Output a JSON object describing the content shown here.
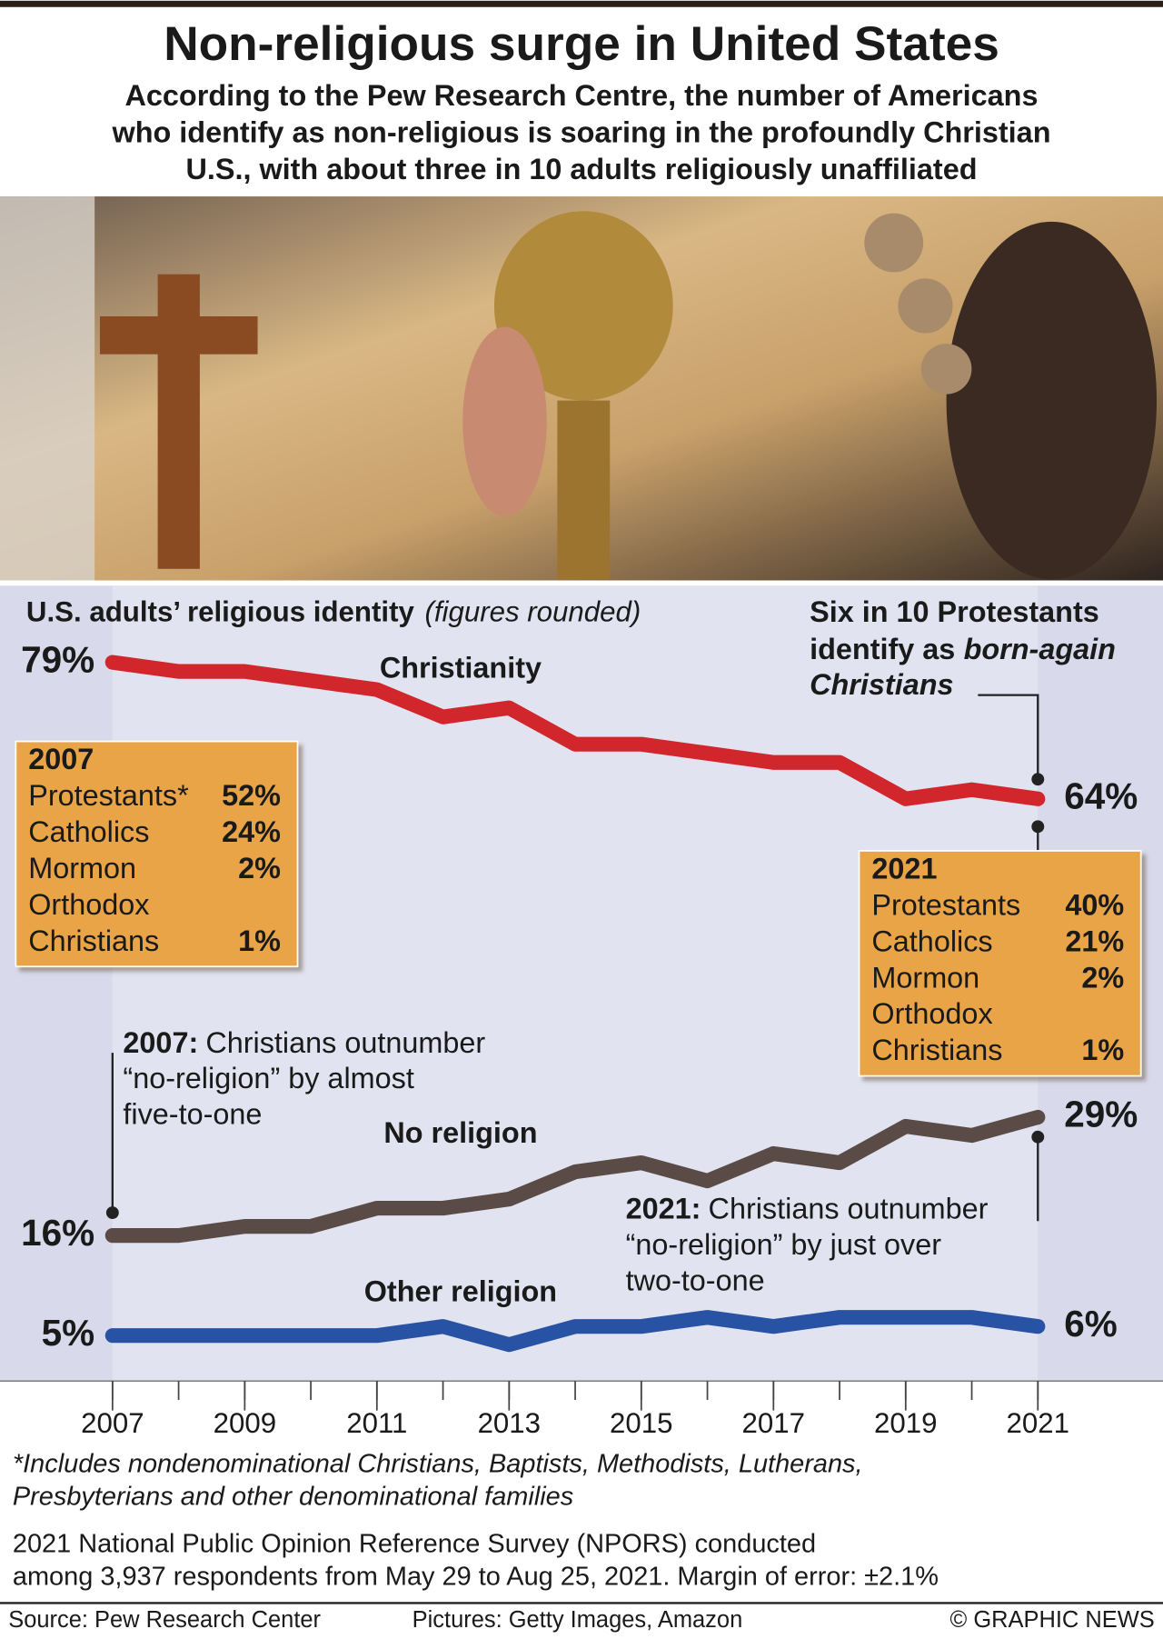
{
  "chart_data": {
    "type": "line",
    "title": "Non-religious surge in United States",
    "subtitle": [
      "According to the Pew Research Centre, the number of Americans",
      "who identify as non-religious is soaring in the profoundly Christian",
      "U.S., with about three in 10 adults religiously unaffiliated"
    ],
    "chart_title": "U.S. adults’ religious identity",
    "chart_title_note": "(figures rounded)",
    "x": [
      2007,
      2008,
      2009,
      2010,
      2011,
      2012,
      2013,
      2014,
      2015,
      2016,
      2017,
      2018,
      2019,
      2020,
      2021
    ],
    "xlim": [
      2007,
      2021
    ],
    "xticks": [
      2007,
      2009,
      2011,
      2013,
      2015,
      2017,
      2019,
      2021
    ],
    "ylim": [
      0,
      85
    ],
    "series": [
      {
        "name": "Christianity",
        "color": "#d2262d",
        "values": [
          79,
          78,
          78,
          77,
          76,
          73,
          74,
          70,
          70,
          69,
          68,
          68,
          64,
          65,
          64
        ],
        "value_labels": [
          "79%",
          null,
          null,
          null,
          null,
          null,
          null,
          null,
          null,
          null,
          null,
          null,
          null,
          null,
          "64%"
        ]
      },
      {
        "name": "No religion",
        "color": "#5b4b47",
        "values": [
          16,
          16,
          17,
          17,
          19,
          19,
          20,
          23,
          24,
          22,
          25,
          24,
          28,
          27,
          29
        ],
        "value_labels": [
          "16%",
          null,
          null,
          null,
          null,
          null,
          null,
          null,
          null,
          null,
          null,
          null,
          null,
          null,
          "29%"
        ]
      },
      {
        "name": "Other religion",
        "color": "#2852a4",
        "values": [
          5,
          5,
          5,
          5,
          5,
          6,
          4,
          6,
          6,
          7,
          6,
          7,
          7,
          7,
          6
        ],
        "value_labels": [
          "5%",
          null,
          null,
          null,
          null,
          null,
          null,
          null,
          null,
          null,
          null,
          null,
          null,
          null,
          "6%"
        ]
      }
    ],
    "note": {
      "lines": [
        "Six in 10 Protestants",
        "identify as"
      ],
      "italic": [
        "born-again",
        "Christians"
      ]
    },
    "callouts": [
      {
        "bold": "2007:",
        "lines": [
          "Christians outnumber",
          "“no-religion” by almost",
          "five-to-one"
        ]
      },
      {
        "bold": "2021:",
        "lines": [
          "Christians outnumber",
          "“no-religion” by just over",
          "two-to-one"
        ]
      }
    ],
    "boxes": [
      {
        "title": "2007",
        "rows": [
          {
            "label": "Protestants*",
            "value": "52%"
          },
          {
            "label": "Catholics",
            "value": "24%"
          },
          {
            "label": "Mormon",
            "value": "2%"
          },
          {
            "label": [
              "Orthodox",
              "Christians"
            ],
            "value": "1%"
          }
        ]
      },
      {
        "title": "2021",
        "rows": [
          {
            "label": "Protestants",
            "value": "40%"
          },
          {
            "label": "Catholics",
            "value": "21%"
          },
          {
            "label": "Mormon",
            "value": "2%"
          },
          {
            "label": [
              "Orthodox",
              "Christians"
            ],
            "value": "1%"
          }
        ]
      }
    ],
    "footnote": [
      "*Includes nondenominational Christians, Baptists, Methodists, Lutherans,",
      "Presbyterians and other denominational families"
    ],
    "survey_note": [
      "2021 National Public Opinion Reference Survey (NPORS) conducted",
      "among 3,937 respondents from May 29 to Aug 25, 2021. Margin of error: ±2.1%"
    ],
    "source": "Source: Pew Research Center",
    "pictures": "Pictures: Getty Images, Amazon",
    "credit": "© GRAPHIC NEWS"
  }
}
